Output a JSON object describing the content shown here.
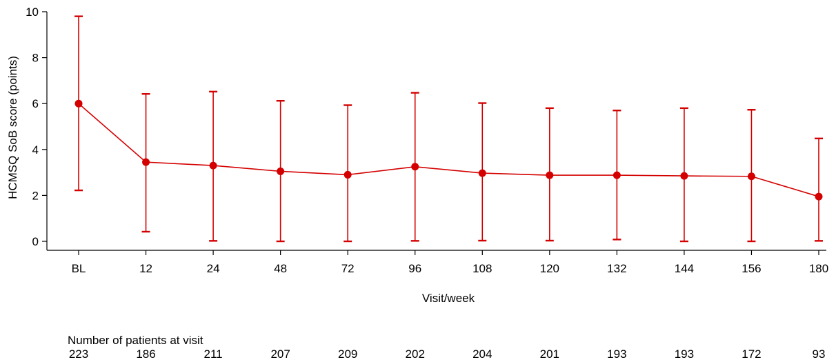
{
  "chart_data": {
    "type": "line",
    "xlabel": "Visit/week",
    "ylabel": "HCMSQ SoB score (points)",
    "ylim": [
      0,
      10
    ],
    "yticks": [
      0,
      2,
      4,
      6,
      8,
      10
    ],
    "grid": false,
    "categories": [
      "BL",
      "12",
      "24",
      "48",
      "72",
      "96",
      "108",
      "120",
      "132",
      "144",
      "156",
      "180"
    ],
    "series": [
      {
        "color": "#d40000",
        "values": [
          6.0,
          3.45,
          3.3,
          3.05,
          2.9,
          3.25,
          2.97,
          2.88,
          2.88,
          2.85,
          2.83,
          1.95
        ],
        "error_upper": [
          9.8,
          6.42,
          6.52,
          6.12,
          5.93,
          6.47,
          6.02,
          5.8,
          5.7,
          5.8,
          5.73,
          4.48
        ],
        "error_lower": [
          2.22,
          0.42,
          0.02,
          0.0,
          0.0,
          0.02,
          0.03,
          0.03,
          0.08,
          0.0,
          0.0,
          0.02
        ]
      }
    ],
    "patient_counts": {
      "label": "Number of patients at visit",
      "values": [
        "223",
        "186",
        "211",
        "207",
        "209",
        "202",
        "204",
        "201",
        "193",
        "193",
        "172",
        "93"
      ]
    }
  }
}
